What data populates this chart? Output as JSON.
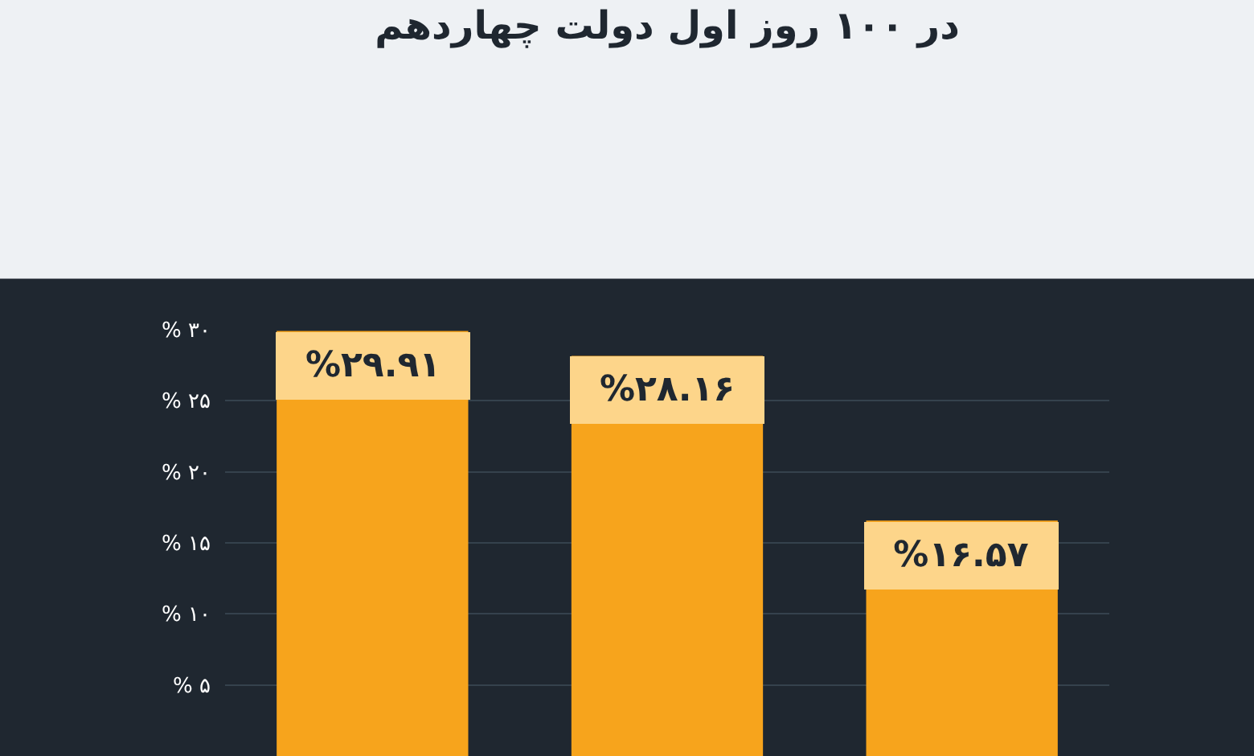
{
  "chart_data": {
    "type": "bar",
    "title": "در ۱۰۰ روز اول دولت چهاردهم",
    "categories": [
      null,
      null,
      null
    ],
    "values": [
      29.91,
      28.16,
      16.57
    ],
    "value_labels": [
      "%۲۹.۹۱",
      "%۲۸.۱۶",
      "%۱۶.۵۷"
    ],
    "color": "#f7a41c",
    "ylim": [
      0,
      30
    ],
    "yticks": [
      {
        "value": 5,
        "label": "% ۵"
      },
      {
        "value": 10,
        "label": "% ۱۰"
      },
      {
        "value": 15,
        "label": "% ۱۵"
      },
      {
        "value": 20,
        "label": "% ۲۰"
      },
      {
        "value": 25,
        "label": "% ۲۵"
      },
      {
        "value": 30,
        "label": "% ۳۰"
      }
    ],
    "grid": "y",
    "legend": false,
    "tick_labels": "y"
  }
}
